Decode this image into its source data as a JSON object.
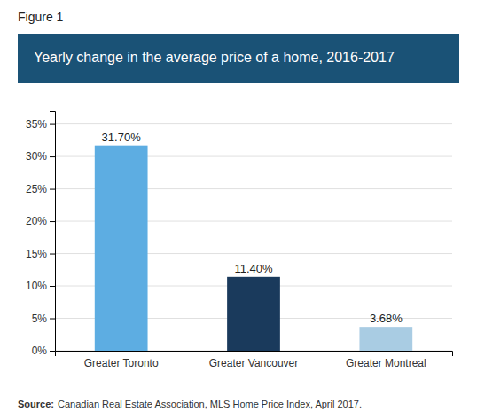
{
  "chart_data": {
    "type": "bar",
    "title": "Yearly change in the average price of a home, 2016-2017",
    "annotations": [
      "Figure 1",
      "Source:",
      "Canadian Real Estate Association, MLS Home Price Index, April 2017."
    ],
    "categories": [
      "Greater Toronto",
      "Greater Vancouver",
      "Greater Montreal"
    ],
    "values": [
      31.7,
      11.4,
      3.68
    ],
    "value_labels": [
      "31.70%",
      "11.40%",
      "3.68%"
    ],
    "data_labels": true,
    "colors": [
      "#5dade2",
      "#1a3a5c",
      "#a9cce3"
    ],
    "ylim": [
      0,
      37
    ],
    "yticks": [
      {
        "value": 0,
        "label": "0%"
      },
      {
        "value": 5,
        "label": "5%"
      },
      {
        "value": 10,
        "label": "10%"
      },
      {
        "value": 15,
        "label": "15%"
      },
      {
        "value": 20,
        "label": "20%"
      },
      {
        "value": 25,
        "label": "25%"
      },
      {
        "value": 30,
        "label": "30%"
      },
      {
        "value": 35,
        "label": "35%"
      }
    ],
    "grid": true
  }
}
